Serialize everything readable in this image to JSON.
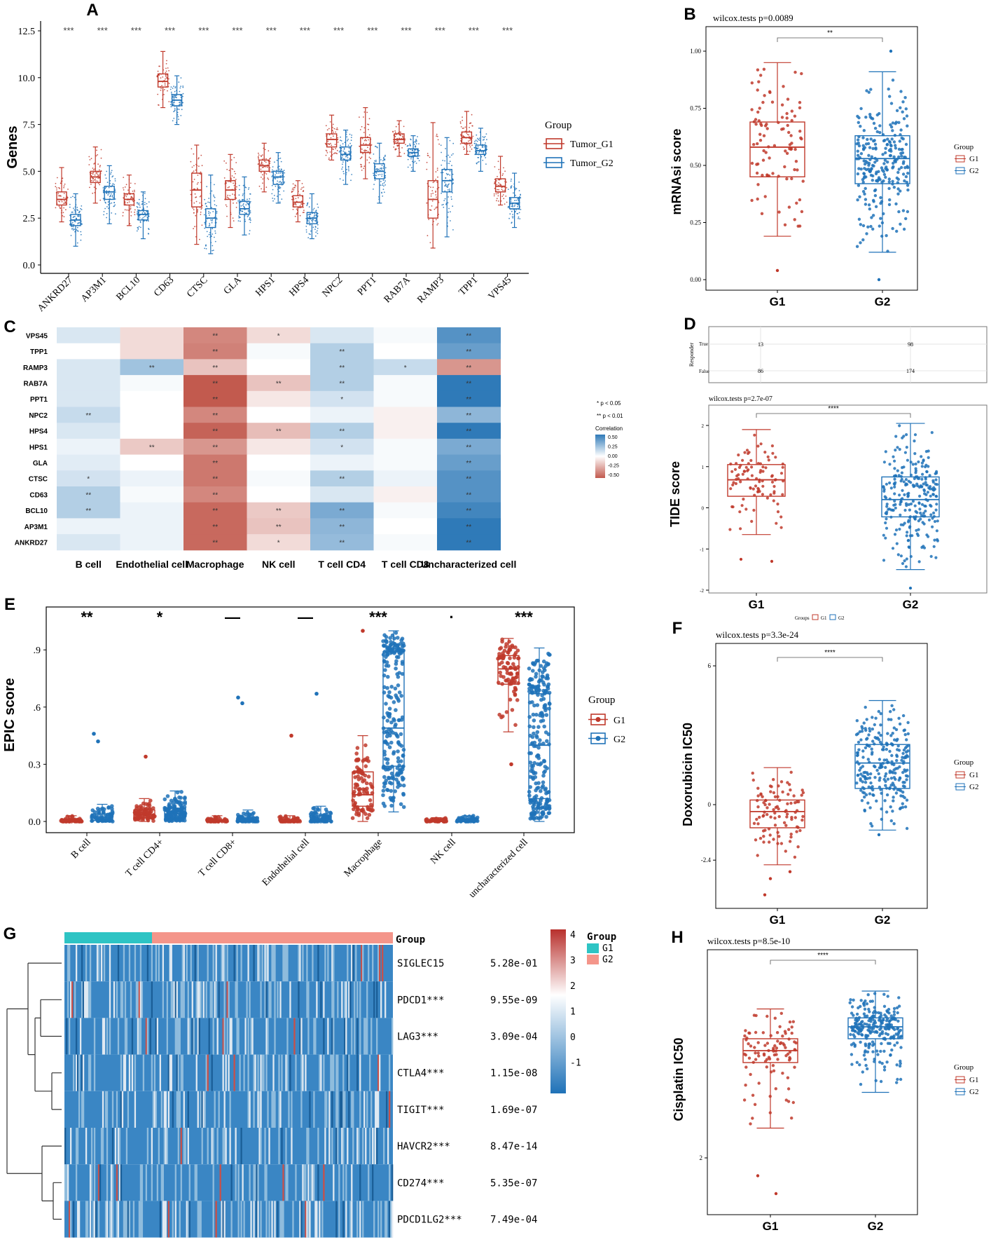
{
  "colors": {
    "g1": "#c0392b",
    "g2": "#1f72b8",
    "hm_low": "#c25a4e",
    "hm_mid": "#ffffff",
    "hm_high": "#2f7ab8",
    "ann_g1": "#2ec4c4",
    "ann_g2": "#f4958a"
  },
  "chart_data": [
    {
      "panel": "A",
      "type": "box",
      "ylabel": "Genes",
      "ylim": [
        0,
        12.5
      ],
      "yticks": [
        "0.0",
        "2.5",
        "5.0",
        "7.5",
        "10.0",
        "12.5"
      ],
      "legend_title": "Group",
      "legend": [
        "Tumor_G1",
        "Tumor_G2"
      ],
      "categories": [
        "ANKRD27",
        "AP3M1",
        "BCL10",
        "CD63",
        "CTSC",
        "GLA",
        "HPS1",
        "HPS4",
        "NPC2",
        "PPT1",
        "RAB7A",
        "RAMP3",
        "TPP1",
        "VPS45"
      ],
      "signif": [
        "***",
        "***",
        "***",
        "***",
        "***",
        "***",
        "***",
        "***",
        "***",
        "***",
        "***",
        "***",
        "***",
        "***"
      ],
      "series": [
        {
          "name": "Tumor_G1",
          "boxes": [
            [
              2.3,
              3.2,
              3.5,
              3.9,
              5.2
            ],
            [
              3.3,
              4.4,
              4.7,
              5.0,
              6.3
            ],
            [
              2.1,
              3.2,
              3.5,
              3.8,
              4.8
            ],
            [
              8.4,
              9.5,
              9.8,
              10.2,
              11.4
            ],
            [
              1.1,
              3.1,
              4.0,
              4.9,
              6.4
            ],
            [
              2.0,
              3.5,
              4.0,
              4.5,
              5.9
            ],
            [
              3.9,
              5.0,
              5.3,
              5.6,
              6.5
            ],
            [
              2.3,
              3.1,
              3.35,
              3.7,
              4.5
            ],
            [
              5.6,
              6.3,
              6.7,
              7.0,
              8.0
            ],
            [
              4.6,
              6.0,
              6.4,
              6.8,
              8.4
            ],
            [
              5.8,
              6.5,
              6.7,
              7.0,
              7.7
            ],
            [
              0.9,
              2.5,
              3.5,
              4.5,
              7.6
            ],
            [
              5.9,
              6.5,
              6.8,
              7.1,
              8.2
            ],
            [
              3.2,
              3.9,
              4.2,
              4.6,
              5.8
            ]
          ]
        },
        {
          "name": "Tumor_G2",
          "boxes": [
            [
              1.0,
              2.1,
              2.4,
              2.7,
              3.8
            ],
            [
              2.2,
              3.5,
              3.9,
              4.2,
              5.3
            ],
            [
              1.4,
              2.4,
              2.7,
              2.9,
              3.9
            ],
            [
              7.5,
              8.5,
              8.8,
              9.1,
              10.1
            ],
            [
              0.6,
              2.0,
              2.5,
              3.0,
              4.8
            ],
            [
              1.6,
              2.7,
              3.0,
              3.4,
              4.7
            ],
            [
              3.3,
              4.3,
              4.7,
              5.0,
              6.0
            ],
            [
              1.4,
              2.2,
              2.5,
              2.8,
              3.8
            ],
            [
              4.3,
              5.6,
              5.9,
              6.3,
              7.2
            ],
            [
              3.3,
              4.6,
              5.0,
              5.4,
              6.5
            ],
            [
              5.0,
              5.8,
              6.0,
              6.2,
              6.9
            ],
            [
              1.5,
              3.9,
              4.5,
              5.1,
              6.8
            ],
            [
              5.0,
              5.9,
              6.1,
              6.4,
              7.3
            ],
            [
              2.0,
              3.0,
              3.3,
              3.6,
              4.9
            ]
          ]
        }
      ]
    },
    {
      "panel": "B",
      "type": "box",
      "subtitle": "wilcox.tests p=0.0089",
      "signif": "**",
      "ylabel": "mRNAsi score",
      "categories": [
        "G1",
        "G2"
      ],
      "ylim": [
        0,
        1.0
      ],
      "yticks": [
        "0.00",
        "0.25",
        "0.50",
        "0.75",
        "1.00"
      ],
      "legend_title": "Group",
      "legend": [
        "G1",
        "G2"
      ],
      "boxes": [
        [
          0.19,
          0.45,
          0.58,
          0.69,
          0.95
        ],
        [
          0.12,
          0.42,
          0.53,
          0.63,
          0.91
        ]
      ]
    },
    {
      "panel": "C",
      "type": "heatmap",
      "rows": [
        "VPS45",
        "TPP1",
        "RAMP3",
        "RAB7A",
        "PPT1",
        "NPC2",
        "HPS4",
        "HPS1",
        "GLA",
        "CTSC",
        "CD63",
        "BCL10",
        "AP3M1",
        "ANKRD27"
      ],
      "cols": [
        "B cell",
        "Endothelial cell",
        "Macrophage",
        "NK cell",
        "T cell CD4",
        "T cell CD8",
        "Uncharacterized cell"
      ],
      "values": [
        [
          0.1,
          -0.12,
          -0.4,
          -0.12,
          0.1,
          0.02,
          0.45
        ],
        [
          0.0,
          -0.12,
          -0.42,
          0.02,
          0.2,
          0.0,
          0.4
        ],
        [
          0.1,
          0.25,
          -0.2,
          0.0,
          0.2,
          0.15,
          -0.35
        ],
        [
          0.1,
          0.02,
          -0.55,
          -0.2,
          0.2,
          0.02,
          0.55
        ],
        [
          0.1,
          0.0,
          -0.55,
          -0.08,
          0.12,
          0.02,
          0.55
        ],
        [
          0.15,
          0.0,
          -0.4,
          0.0,
          0.05,
          -0.05,
          0.3
        ],
        [
          0.1,
          0.0,
          -0.52,
          -0.22,
          0.2,
          -0.05,
          0.55
        ],
        [
          0.05,
          -0.18,
          -0.35,
          -0.08,
          0.12,
          0.02,
          0.35
        ],
        [
          0.08,
          0.0,
          -0.45,
          0.0,
          0.05,
          0.02,
          0.4
        ],
        [
          0.12,
          0.05,
          -0.45,
          0.02,
          0.2,
          0.05,
          0.45
        ],
        [
          0.2,
          0.02,
          -0.4,
          0.0,
          0.1,
          -0.05,
          0.45
        ],
        [
          0.2,
          0.05,
          -0.5,
          -0.18,
          0.35,
          0.02,
          0.5
        ],
        [
          0.05,
          0.05,
          -0.5,
          -0.2,
          0.3,
          0.0,
          0.55
        ],
        [
          0.1,
          0.05,
          -0.5,
          -0.12,
          0.28,
          0.02,
          0.55
        ]
      ],
      "stars": [
        [
          "",
          "",
          "**",
          "*",
          "",
          "",
          "**"
        ],
        [
          "",
          "",
          "**",
          "",
          "**",
          "",
          "**"
        ],
        [
          "",
          "**",
          "**",
          "",
          "**",
          "*",
          "**"
        ],
        [
          "",
          "",
          "**",
          "**",
          "**",
          "",
          "**"
        ],
        [
          "",
          "",
          "**",
          "",
          "*",
          "",
          "**"
        ],
        [
          "**",
          "",
          "**",
          "",
          "",
          "",
          "**"
        ],
        [
          "",
          "",
          "**",
          "**",
          "**",
          "",
          "**"
        ],
        [
          "",
          "**",
          "**",
          "",
          "*",
          "",
          "**"
        ],
        [
          "",
          "",
          "**",
          "",
          "",
          "",
          "**"
        ],
        [
          "*",
          "",
          "**",
          "",
          "**",
          "",
          "**"
        ],
        [
          "**",
          "",
          "**",
          "",
          "",
          "",
          "**"
        ],
        [
          "**",
          "",
          "**",
          "**",
          "**",
          "",
          "**"
        ],
        [
          "",
          "",
          "**",
          "**",
          "**",
          "",
          "**"
        ],
        [
          "",
          "",
          "**",
          "*",
          "**",
          "",
          "**"
        ]
      ],
      "sig_notes": [
        "* p < 0.05",
        "** p < 0.01"
      ],
      "legend_title": "Correlation",
      "legend_ticks": [
        "0.50",
        "0.25",
        "0.00",
        "-0.25",
        "-0.50"
      ]
    },
    {
      "panel": "D",
      "type": "box",
      "subtitle": "wilcox.tests p=2.7e-07",
      "signif": "****",
      "ylabel": "TIDE score",
      "categories": [
        "G1",
        "G2"
      ],
      "ylim": [
        -2,
        2
      ],
      "yticks": [
        "-2",
        "-1",
        "0",
        "1",
        "2"
      ],
      "boxes": [
        [
          -0.65,
          0.28,
          0.68,
          1.05,
          1.9
        ],
        [
          -1.5,
          -0.22,
          0.2,
          0.75,
          2.05
        ]
      ],
      "table": {
        "axis_label": "Responder",
        "rows": [
          "True",
          "False"
        ],
        "values": [
          [
            "13",
            "98"
          ],
          [
            "86",
            "174"
          ]
        ]
      },
      "legend_title": "Groups",
      "legend": [
        "G1",
        "G2"
      ]
    },
    {
      "panel": "E",
      "type": "box",
      "ylabel": "EPIC score",
      "ylim": [
        0,
        1.0
      ],
      "yticks": [
        "0.0",
        "0.3",
        ".6",
        ".9"
      ],
      "categories": [
        "B cell",
        "T cell CD4+",
        "T cell CD8+",
        "Endothelial cell",
        "Macrophage",
        "NK cell",
        "uncharacterized cell"
      ],
      "signif": [
        "**",
        "*",
        "—",
        "—",
        "***",
        "·",
        "***"
      ],
      "legend_title": "Group",
      "legend": [
        "G1",
        "G2"
      ],
      "series": [
        {
          "name": "G1",
          "boxes": [
            [
              0,
              0,
              0.005,
              0.01,
              0.03
            ],
            [
              0,
              0.02,
              0.035,
              0.06,
              0.12
            ],
            [
              0,
              0,
              0.005,
              0.01,
              0.03
            ],
            [
              0,
              0,
              0.005,
              0.01,
              0.03
            ],
            [
              0,
              0.08,
              0.14,
              0.26,
              0.45
            ],
            [
              0,
              0,
              0.003,
              0.008,
              0.02
            ],
            [
              0.47,
              0.72,
              0.8,
              0.87,
              0.96
            ]
          ]
        },
        {
          "name": "G2",
          "boxes": [
            [
              0,
              0.005,
              0.02,
              0.04,
              0.09
            ],
            [
              0,
              0.015,
              0.04,
              0.07,
              0.16
            ],
            [
              0,
              0,
              0.005,
              0.02,
              0.06
            ],
            [
              0,
              0,
              0.01,
              0.03,
              0.08
            ],
            [
              0.05,
              0.29,
              0.49,
              0.89,
              1.0
            ],
            [
              0,
              0,
              0.005,
              0.01,
              0.03
            ],
            [
              0,
              0.12,
              0.4,
              0.67,
              0.91
            ]
          ]
        }
      ]
    },
    {
      "panel": "F",
      "type": "box",
      "subtitle": "wilcox.tests p=3.3e-24",
      "signif": "****",
      "ylabel": "Doxorubicin IC50",
      "categories": [
        "G1",
        "G2"
      ],
      "ylim": [
        -4,
        6
      ],
      "yticks": [
        "-2.4",
        "0",
        "6"
      ],
      "legend_title": "Group",
      "legend": [
        "G1",
        "G2"
      ],
      "boxes": [
        [
          -2.6,
          -1.0,
          -0.3,
          0.2,
          1.6
        ],
        [
          -1.1,
          0.7,
          1.8,
          2.6,
          4.5
        ]
      ]
    },
    {
      "panel": "G",
      "type": "heatmap",
      "annotation_title": "Group",
      "annotation_legend": [
        "G1",
        "G2"
      ],
      "genes": [
        "SIGLEC15",
        "PDCD1***",
        "LAG3***",
        "CTLA4***",
        "TIGIT***",
        "HAVCR2***",
        "CD274***",
        "PDCD1LG2***"
      ],
      "pvalues": [
        "5.28e-01",
        "9.55e-09",
        "3.09e-04",
        "1.15e-08",
        "1.69e-07",
        "8.47e-14",
        "5.35e-07",
        "7.49e-04"
      ],
      "scale_ticks": [
        "4",
        "3",
        "2",
        "1",
        "0",
        "-1"
      ]
    },
    {
      "panel": "H",
      "type": "box",
      "subtitle": "wilcox.tests p=8.5e-10",
      "signif": "****",
      "ylabel": "Cisplatin IC50",
      "categories": [
        "G1",
        "G2"
      ],
      "ylim": [
        1.2,
        5.2
      ],
      "yticks": [
        "2"
      ],
      "legend_title": "Group",
      "legend": [
        "G1",
        "G2"
      ],
      "boxes": [
        [
          2.5,
          3.6,
          3.8,
          4.0,
          4.5
        ],
        [
          3.1,
          4.0,
          4.2,
          4.35,
          4.8
        ]
      ]
    }
  ]
}
